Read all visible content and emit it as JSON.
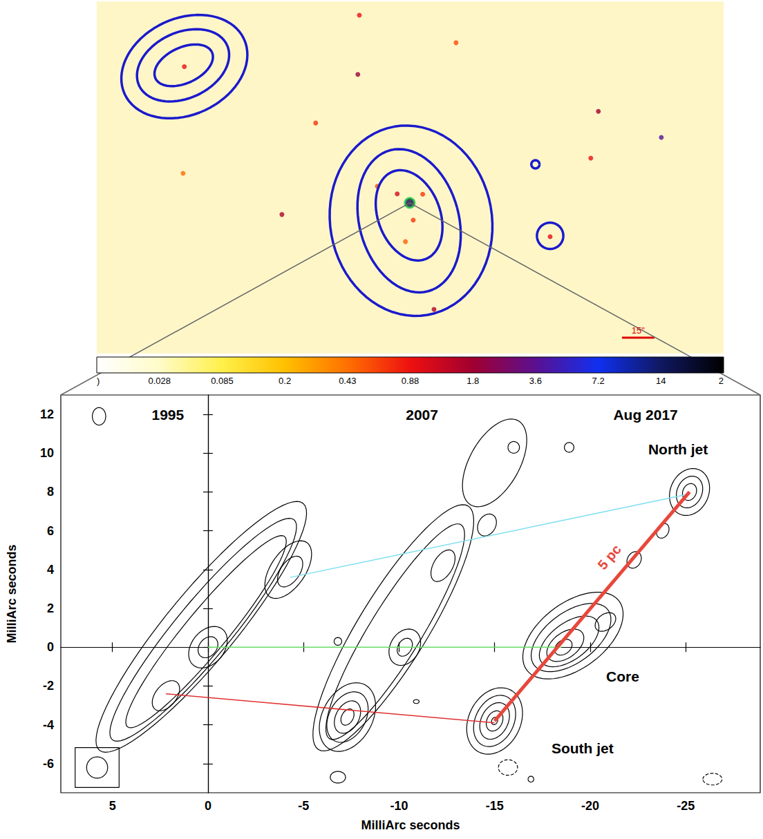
{
  "chart_data": [
    {
      "type": "image",
      "color": "#1a1acc",
      "tick_labels": false,
      "grid": false,
      "xlim": [
        -144.7,
        145.1
      ],
      "ylim": [
        -70.0,
        93.6
      ],
      "colorbar": {
        "ticks": [
          {
            "value": 0,
            "label": ")"
          },
          0.028,
          0.085,
          0.2,
          0.43,
          0.88,
          1.8,
          3.6,
          7.2,
          14,
          {
            "value": 28,
            "label": "2"
          }
        ],
        "colors": [
          "#ffffff",
          "#fffbc8",
          "#fff04a",
          "#ffc000",
          "#ff7000",
          "#ee1010",
          "#a00030",
          "#5a1090",
          "#1030f0",
          "#101860",
          "#000000"
        ]
      },
      "sources": {
        "x": [
          -104.2,
          -24.0,
          -23.3,
          21.4,
          87.2,
          116.3,
          83.7,
          -43.5,
          -59.1,
          11.2,
          64.9,
          -5.8,
          -15.0,
          1.6,
          -104.8,
          -2.0,
          6.0
        ],
        "y": [
          63.3,
          59.7,
          87.2,
          74.4,
          42.5,
          30.4,
          20.8,
          37.1,
          -5.4,
          -49.5,
          -15.7,
          4.2,
          7.7,
          -8.0,
          13.7,
          -18.0,
          4.0
        ],
        "values": [
          0.9,
          2.0,
          0.9,
          0.6,
          1.8,
          4.0,
          0.9,
          0.7,
          1.6,
          1.6,
          1.0,
          1.2,
          0.6,
          0.7,
          0.45,
          0.5,
          0.7
        ]
      },
      "contours": [
        {
          "x": 0.6,
          "y": -8.3,
          "a": 37.4,
          "b": 44.4,
          "angle": 10
        },
        {
          "x": -0.3,
          "y": -8.3,
          "a": 23.0,
          "b": 33.9,
          "angle": 15
        },
        {
          "x": -0.3,
          "y": -5.8,
          "a": 14.4,
          "b": 21.7,
          "angle": 20
        },
        {
          "x": -104.2,
          "y": 63.3,
          "a": 30.4,
          "b": 22.4,
          "angle": 25
        },
        {
          "x": -104.8,
          "y": 63.9,
          "a": 22.4,
          "b": 15.3,
          "angle": 25
        },
        {
          "x": -104.5,
          "y": 63.9,
          "a": 14.4,
          "b": 8.3,
          "angle": 25
        },
        {
          "x": 58.1,
          "y": 17.9,
          "a": 1.9,
          "b": 1.9,
          "angle": 0
        },
        {
          "x": 64.9,
          "y": -15.3,
          "a": 6.1,
          "b": 6.1,
          "angle": 0
        }
      ],
      "core_marker": {
        "x": 0,
        "y": 0,
        "color": "#22cc44"
      },
      "scale_bar": {
        "length": 15,
        "label": "15\"",
        "x": 98.1,
        "y": -62.6,
        "color": "#e00000"
      }
    },
    {
      "type": "contour",
      "color": "#000000",
      "xlabel": "MilliArc seconds",
      "ylabel": "MilliArc seconds",
      "xlim": [
        7.7,
        -28.9
      ],
      "ylim": [
        -7.5,
        13.0
      ],
      "xticks": [
        5,
        0,
        -5,
        -10,
        -15,
        -20,
        -25
      ],
      "yticks": [
        -6,
        -4,
        -2,
        0,
        2,
        4,
        6,
        8,
        10,
        12
      ],
      "grid": false,
      "contours": [
        {
          "x": 0.35,
          "y": 1.05,
          "a": 8.3,
          "b": 1.8,
          "angle": 130
        },
        {
          "x": 0.25,
          "y": 0.9,
          "a": 7.4,
          "b": 1.45,
          "angle": 130
        },
        {
          "x": 0.1,
          "y": 0.8,
          "a": 6.4,
          "b": 1.1,
          "angle": 130
        },
        {
          "x": 0,
          "y": 0,
          "a": 1.2,
          "b": 0.85,
          "angle": 130
        },
        {
          "x": 0,
          "y": 0,
          "a": 0.6,
          "b": 0.45,
          "angle": 130
        },
        {
          "x": -4.2,
          "y": 4.0,
          "a": 1.7,
          "b": 0.9,
          "angle": 125
        },
        {
          "x": -4.3,
          "y": 3.9,
          "a": 0.9,
          "b": 0.5,
          "angle": 125
        },
        {
          "x": 2.2,
          "y": -2.5,
          "a": 0.9,
          "b": 0.55,
          "angle": 130
        },
        {
          "x": -9.7,
          "y": 1.0,
          "a": 7.4,
          "b": 1.8,
          "angle": 122
        },
        {
          "x": -9.8,
          "y": 0.8,
          "a": 6.5,
          "b": 1.35,
          "angle": 122
        },
        {
          "x": -15.0,
          "y": 9.5,
          "a": 2.5,
          "b": 1.3,
          "angle": 120
        },
        {
          "x": -16.0,
          "y": 10.3,
          "a": 0.3,
          "b": 0.3,
          "angle": 0
        },
        {
          "x": -18.9,
          "y": 10.3,
          "a": 0.25,
          "b": 0.25,
          "angle": 0
        },
        {
          "x": -10.3,
          "y": 0,
          "a": 1.0,
          "b": 0.75,
          "angle": 122
        },
        {
          "x": -10.3,
          "y": 0,
          "a": 0.5,
          "b": 0.35,
          "angle": 122
        },
        {
          "x": -12.3,
          "y": 4.2,
          "a": 0.9,
          "b": 0.5,
          "angle": 121
        },
        {
          "x": -14.6,
          "y": 6.3,
          "a": 0.6,
          "b": 0.45,
          "angle": 121
        },
        {
          "x": -7.3,
          "y": -3.6,
          "a": 1.9,
          "b": 1.3,
          "angle": 120
        },
        {
          "x": -7.3,
          "y": -3.6,
          "a": 1.4,
          "b": 0.95,
          "angle": 120
        },
        {
          "x": -7.3,
          "y": -3.6,
          "a": 0.9,
          "b": 0.6,
          "angle": 120
        },
        {
          "x": -7.3,
          "y": -3.6,
          "a": 0.45,
          "b": 0.3,
          "angle": 120
        },
        {
          "x": -25.2,
          "y": 8.0,
          "a": 1.25,
          "b": 1.0,
          "angle": 115
        },
        {
          "x": -25.2,
          "y": 8.0,
          "a": 0.85,
          "b": 0.65,
          "angle": 115
        },
        {
          "x": -25.2,
          "y": 8.0,
          "a": 0.45,
          "b": 0.35,
          "angle": 115
        },
        {
          "x": -19.1,
          "y": 0.6,
          "a": 3.0,
          "b": 1.7,
          "angle": 144
        },
        {
          "x": -19.0,
          "y": 0.5,
          "a": 2.4,
          "b": 1.3,
          "angle": 144
        },
        {
          "x": -18.9,
          "y": 0.3,
          "a": 1.8,
          "b": 0.95,
          "angle": 144
        },
        {
          "x": -18.7,
          "y": 0.1,
          "a": 1.1,
          "b": 0.65,
          "angle": 144
        },
        {
          "x": -18.6,
          "y": 0,
          "a": 0.5,
          "b": 0.35,
          "angle": 144
        },
        {
          "x": -20.8,
          "y": 1.3,
          "a": 0.6,
          "b": 0.4,
          "angle": 144
        },
        {
          "x": -15.0,
          "y": -3.8,
          "a": 1.8,
          "b": 1.35,
          "angle": 118
        },
        {
          "x": -15.0,
          "y": -3.8,
          "a": 1.4,
          "b": 1.0,
          "angle": 118
        },
        {
          "x": -15.0,
          "y": -3.8,
          "a": 1.0,
          "b": 0.7,
          "angle": 118
        },
        {
          "x": -15.0,
          "y": -3.8,
          "a": 0.55,
          "b": 0.4,
          "angle": 118
        },
        {
          "x": -15.0,
          "y": -3.8,
          "a": 0.2,
          "b": 0.15,
          "angle": 118
        },
        {
          "x": -22.3,
          "y": 4.5,
          "a": 0.45,
          "b": 0.35,
          "angle": 120
        },
        {
          "x": -23.8,
          "y": 6.0,
          "a": 0.4,
          "b": 0.3,
          "angle": 120
        },
        {
          "x": -6.8,
          "y": 0.3,
          "a": 0.2,
          "b": 0.2,
          "angle": 0
        },
        {
          "x": -6.8,
          "y": -6.7,
          "a": 0.4,
          "b": 0.3,
          "angle": 0
        },
        {
          "x": -10.9,
          "y": -2.8,
          "a": 0.15,
          "b": 0.1,
          "angle": 0
        },
        {
          "x": -16.9,
          "y": -6.8,
          "a": 0.15,
          "b": 0.15,
          "angle": 0
        },
        {
          "x": 5.7,
          "y": 11.9,
          "a": 0.35,
          "b": 0.45,
          "angle": 0
        },
        {
          "x": -15.7,
          "y": -6.2,
          "a": 0.5,
          "b": 0.4,
          "angle": 0,
          "line_style": "dashed"
        },
        {
          "x": -26.4,
          "y": -6.8,
          "a": 0.5,
          "b": 0.3,
          "angle": 0,
          "line_style": "dashed"
        }
      ],
      "beam": {
        "x": 5.8,
        "y": -6.2,
        "a": 0.55,
        "b": 0.55
      },
      "lines": [
        {
          "color": "#7fdff0",
          "x": [
            -4.3,
            -25.2
          ],
          "y": [
            3.6,
            7.9
          ]
        },
        {
          "color": "#66dd66",
          "x": [
            0,
            -18.5
          ],
          "y": [
            0,
            0
          ]
        },
        {
          "color": "#e03030",
          "x": [
            2.2,
            -15.0
          ],
          "y": [
            -2.4,
            -3.9
          ]
        }
      ],
      "scale_line": {
        "label": "5 pc",
        "color": "#e8473c",
        "x": [
          -15.0,
          -25.2
        ],
        "y": [
          -3.8,
          8.0
        ],
        "label_x": -21.0,
        "label_y": 4.65
      },
      "annotations": [
        {
          "text": "1995",
          "x": 2.1,
          "y": 12.0
        },
        {
          "text": "2007",
          "x": -11.2,
          "y": 12.0
        },
        {
          "text": "Aug 2017",
          "x": -22.9,
          "y": 12.0
        },
        {
          "text": "North jet",
          "x": -24.6,
          "y": 10.2
        },
        {
          "text": "Core",
          "x": -21.7,
          "y": -1.5
        },
        {
          "text": "South jet",
          "x": -19.6,
          "y": -5.2
        }
      ]
    }
  ]
}
